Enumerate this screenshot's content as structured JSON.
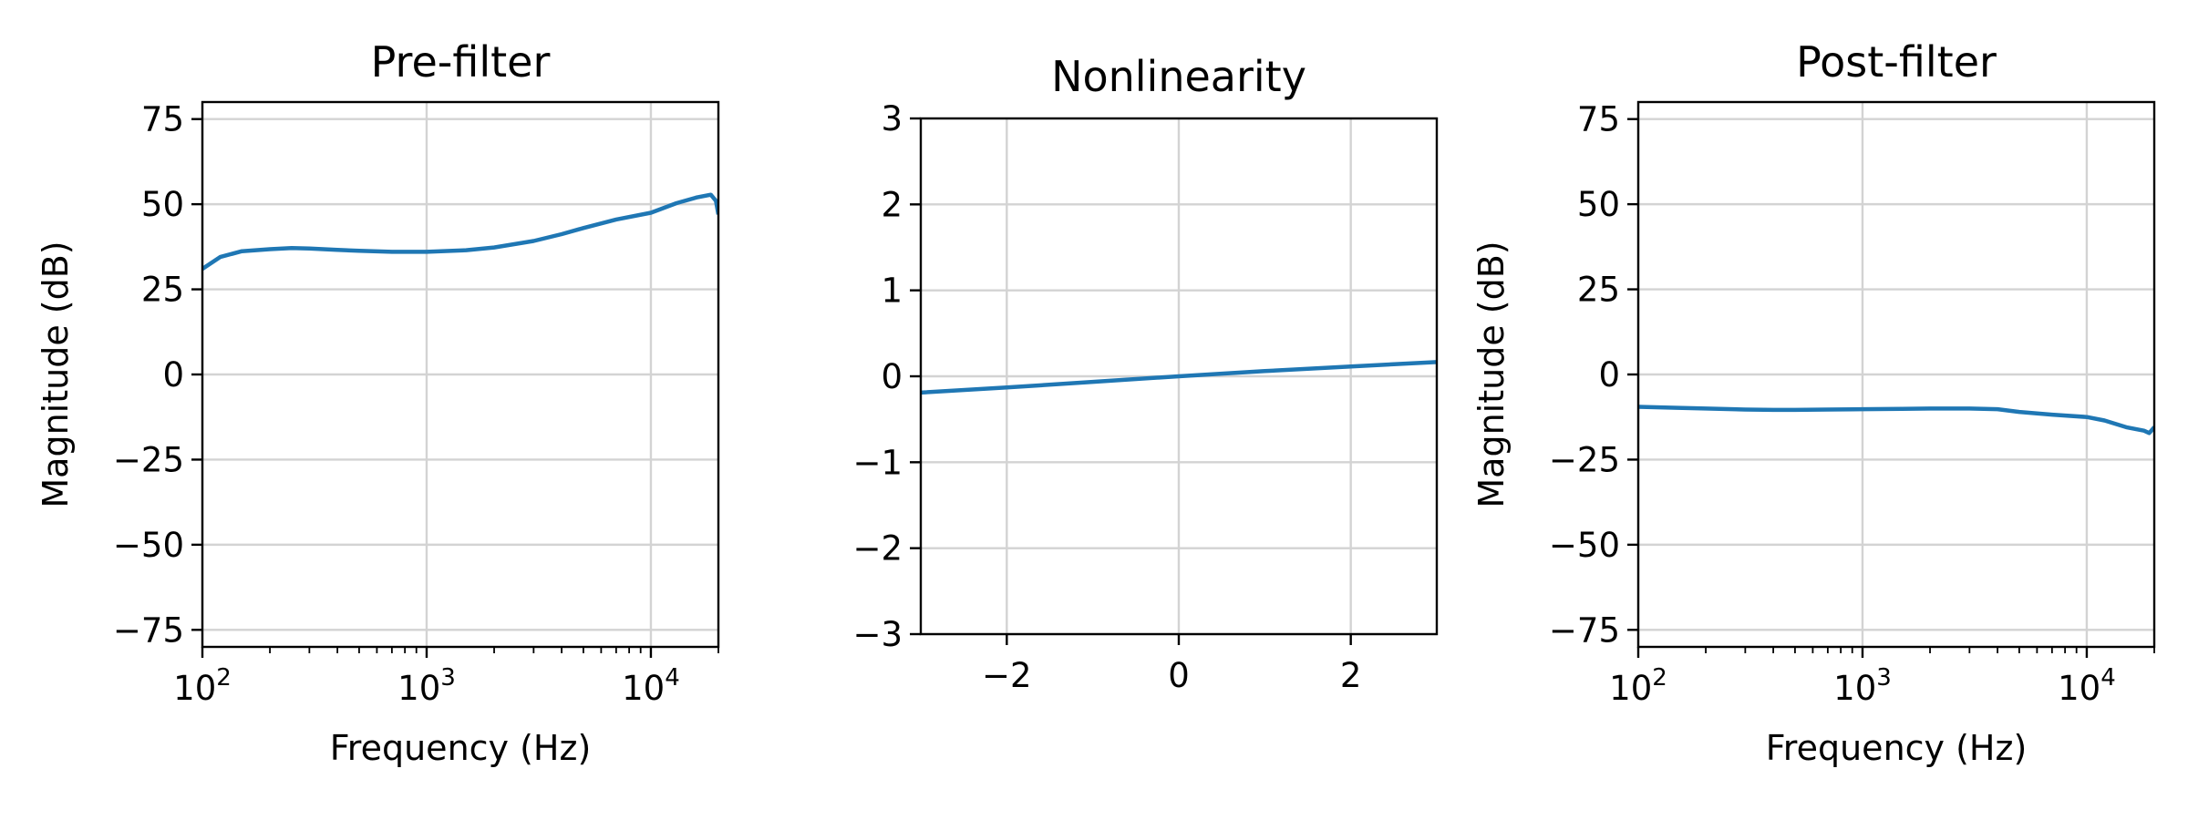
{
  "chart_data": [
    {
      "type": "line",
      "title": "Pre-filter",
      "xlabel": "Frequency (Hz)",
      "ylabel": "Magnitude (dB)",
      "xscale": "log",
      "xlim": [
        100,
        20000
      ],
      "ylim": [
        -80,
        80
      ],
      "xticks": [
        {
          "base": "10",
          "exp": "2"
        },
        {
          "base": "10",
          "exp": "3"
        },
        {
          "base": "10",
          "exp": "4"
        }
      ],
      "yticks": [
        "75",
        "50",
        "25",
        "0",
        "−25",
        "−50",
        "−75"
      ],
      "grid": true,
      "color": "#1f77b4",
      "series": [
        {
          "x": [
            100,
            120,
            150,
            200,
            250,
            300,
            400,
            500,
            700,
            1000,
            1500,
            2000,
            3000,
            4000,
            5000,
            7000,
            10000,
            13000,
            16000,
            18500,
            19500,
            20000
          ],
          "y": [
            31,
            34.5,
            36.2,
            36.8,
            37.1,
            37,
            36.6,
            36.3,
            36,
            36,
            36.5,
            37.3,
            39.2,
            41.2,
            43,
            45.5,
            47.5,
            50.3,
            52,
            52.8,
            51,
            47
          ]
        }
      ]
    },
    {
      "type": "line",
      "title": "Nonlinearity",
      "xlabel": "",
      "ylabel": "",
      "xlim": [
        -3,
        3
      ],
      "ylim": [
        -3,
        3
      ],
      "xticks": [
        "−2",
        "0",
        "2"
      ],
      "yticks": [
        "3",
        "2",
        "1",
        "0",
        "−1",
        "−2",
        "−3"
      ],
      "grid": true,
      "color": "#1f77b4",
      "series": [
        {
          "x": [
            -3,
            -2,
            -1,
            0,
            1,
            2,
            3
          ],
          "y": [
            -0.19,
            -0.13,
            -0.065,
            0,
            0.06,
            0.115,
            0.165
          ]
        }
      ]
    },
    {
      "type": "line",
      "title": "Post-filter",
      "xlabel": "Frequency (Hz)",
      "ylabel": "Magnitude (dB)",
      "xscale": "log",
      "xlim": [
        100,
        20000
      ],
      "ylim": [
        -80,
        80
      ],
      "xticks": [
        {
          "base": "10",
          "exp": "2"
        },
        {
          "base": "10",
          "exp": "3"
        },
        {
          "base": "10",
          "exp": "4"
        }
      ],
      "yticks": [
        "75",
        "50",
        "25",
        "0",
        "−25",
        "−50",
        "−75"
      ],
      "grid": true,
      "color": "#1f77b4",
      "series": [
        {
          "x": [
            100,
            150,
            200,
            300,
            400,
            500,
            700,
            1000,
            1500,
            2000,
            3000,
            4000,
            5000,
            7000,
            10000,
            12000,
            15000,
            18000,
            19000,
            20000
          ],
          "y": [
            -9.5,
            -9.8,
            -10,
            -10.3,
            -10.4,
            -10.4,
            -10.3,
            -10.2,
            -10.1,
            -10,
            -10,
            -10.2,
            -11,
            -11.8,
            -12.5,
            -13.5,
            -15.5,
            -16.5,
            -17.2,
            -15.5
          ]
        }
      ]
    }
  ]
}
